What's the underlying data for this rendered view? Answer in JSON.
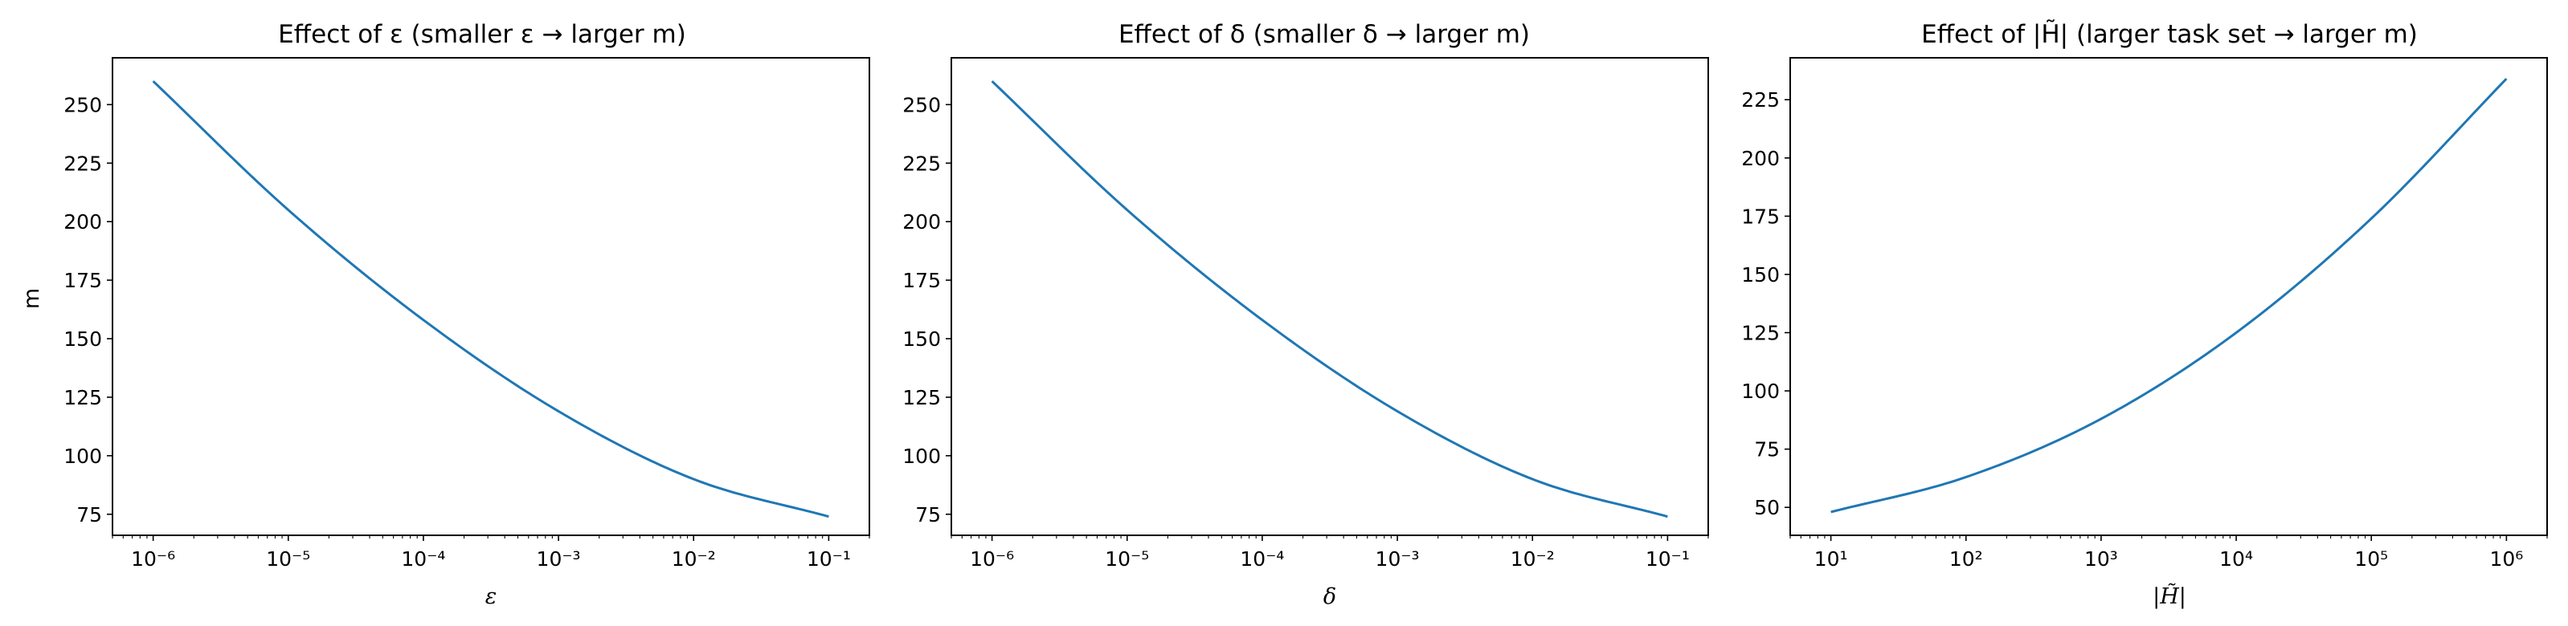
{
  "figure": {
    "background": "#ffffff",
    "line_color": "#1f77b4"
  },
  "chart_data": [
    {
      "type": "line",
      "title": "Effect of ε (smaller ε → larger m)",
      "xlabel": "ε",
      "ylabel": "m",
      "xscale": "log",
      "xlim": [
        5e-07,
        0.2
      ],
      "ylim": [
        66,
        270
      ],
      "xtick_labels": [
        "10⁻⁶",
        "10⁻⁵",
        "10⁻⁴",
        "10⁻³",
        "10⁻²",
        "10⁻¹"
      ],
      "xtick_values": [
        1e-06,
        1e-05,
        0.0001,
        0.001,
        0.01,
        0.1
      ],
      "ytick_values": [
        75,
        100,
        125,
        150,
        175,
        200,
        225,
        250
      ],
      "ytick_labels": [
        "75",
        "100",
        "125",
        "150",
        "175",
        "200",
        "225",
        "250"
      ],
      "series": [
        {
          "color": "#1f77b4",
          "x": [
            1e-06,
            1e-05,
            0.0001,
            0.001,
            0.01,
            0.1
          ],
          "y": [
            260,
            205,
            158,
            119,
            90,
            74
          ]
        }
      ],
      "grid": false,
      "legend": false
    },
    {
      "type": "line",
      "title": "Effect of δ (smaller δ → larger m)",
      "xlabel": "δ",
      "ylabel": "",
      "xscale": "log",
      "xlim": [
        5e-07,
        0.2
      ],
      "ylim": [
        66,
        270
      ],
      "xtick_labels": [
        "10⁻⁶",
        "10⁻⁵",
        "10⁻⁴",
        "10⁻³",
        "10⁻²",
        "10⁻¹"
      ],
      "xtick_values": [
        1e-06,
        1e-05,
        0.0001,
        0.001,
        0.01,
        0.1
      ],
      "ytick_values": [
        75,
        100,
        125,
        150,
        175,
        200,
        225,
        250
      ],
      "ytick_labels": [
        "75",
        "100",
        "125",
        "150",
        "175",
        "200",
        "225",
        "250"
      ],
      "series": [
        {
          "color": "#1f77b4",
          "x": [
            1e-06,
            1e-05,
            0.0001,
            0.001,
            0.01,
            0.1
          ],
          "y": [
            260,
            205,
            158,
            119,
            90,
            74
          ]
        }
      ],
      "grid": false,
      "legend": false
    },
    {
      "type": "line",
      "title": "Effect of |H̃| (larger task set → larger m)",
      "xlabel": "|H̃|",
      "ylabel": "",
      "xscale": "log",
      "xlim": [
        5,
        2000000
      ],
      "ylim": [
        38,
        243
      ],
      "xtick_labels": [
        "10¹",
        "10²",
        "10³",
        "10⁴",
        "10⁵",
        "10⁶"
      ],
      "xtick_values": [
        10,
        100,
        1000,
        10000,
        100000,
        1000000
      ],
      "ytick_values": [
        50,
        75,
        100,
        125,
        150,
        175,
        200,
        225
      ],
      "ytick_labels": [
        "50",
        "75",
        "100",
        "125",
        "150",
        "175",
        "200",
        "225"
      ],
      "series": [
        {
          "color": "#1f77b4",
          "x": [
            10,
            100,
            1000,
            10000,
            100000,
            1000000
          ],
          "y": [
            48,
            63,
            88,
            125,
            174,
            234
          ]
        }
      ],
      "grid": false,
      "legend": false
    }
  ]
}
